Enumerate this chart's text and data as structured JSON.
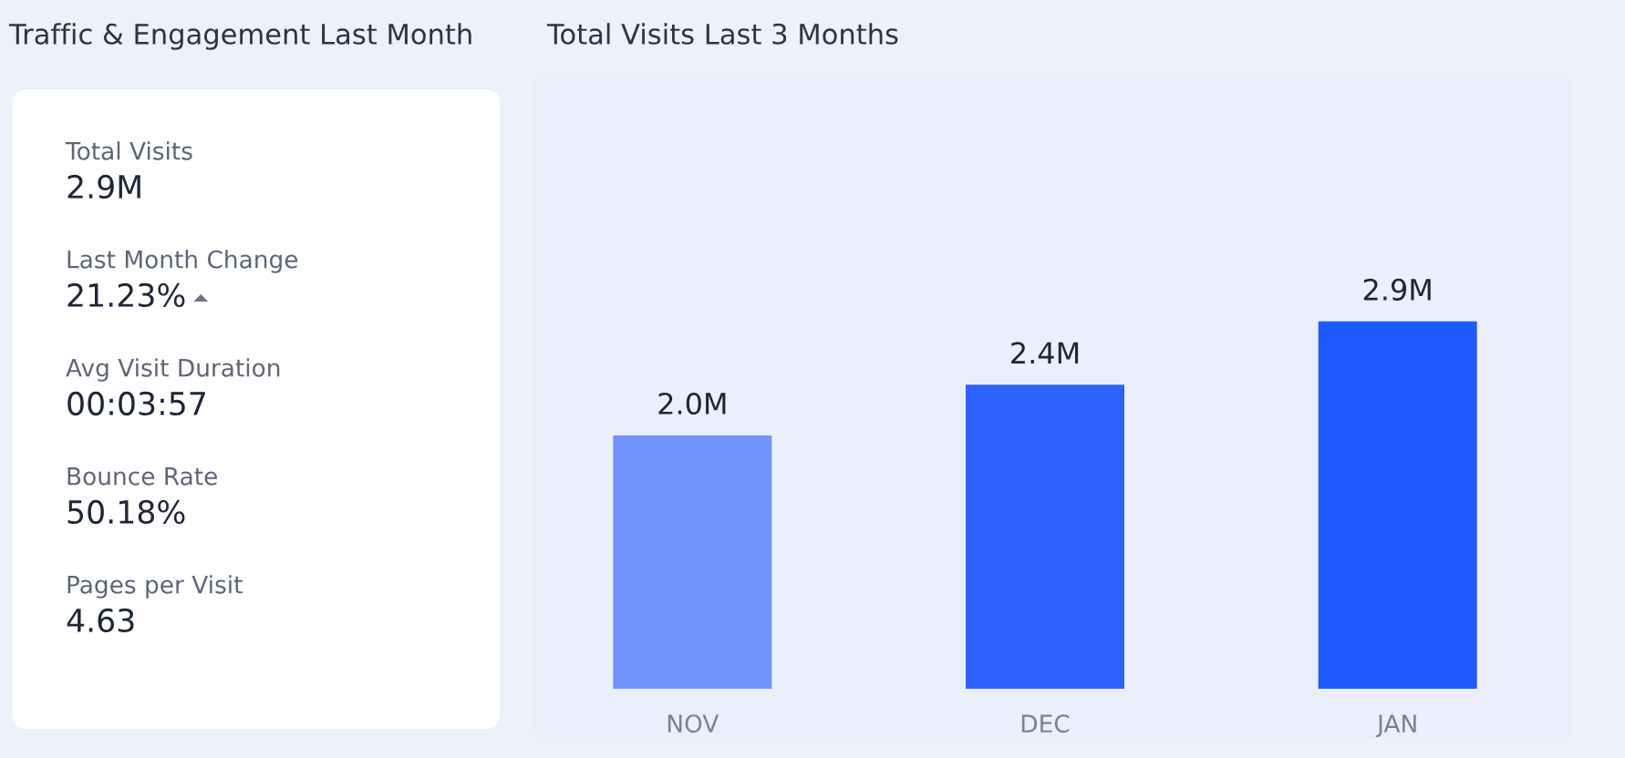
{
  "chart_data": [
    {
      "type": "other",
      "title": "Traffic & Engagement Last Month",
      "annotations": [
        "Total Visits",
        "2.9M",
        "Last Month Change",
        "21.23%",
        "Avg Visit Duration",
        "00:03:57",
        "Bounce Rate",
        "50.18%",
        "Pages per Visit",
        "4.63"
      ]
    },
    {
      "type": "bar",
      "title": "Total Visits Last 3 Months",
      "categories": [
        "NOV",
        "DEC",
        "JAN"
      ],
      "values": [
        2.0,
        2.4,
        2.9
      ],
      "colors": [
        "#7094fb",
        "#2e62fd",
        "#1f5afe"
      ],
      "value_labels": [
        "2.0M",
        "2.4M",
        "2.9M"
      ]
    }
  ]
}
